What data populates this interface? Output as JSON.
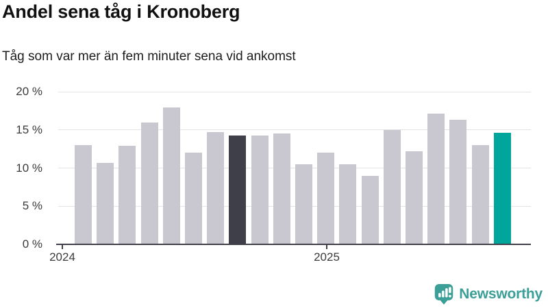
{
  "header": {
    "title": "Andel sena tåg i Kronoberg",
    "subtitle": "Tåg som var mer än fem minuter sena vid ankomst"
  },
  "chart_data": {
    "type": "bar",
    "title": "Andel sena tåg i Kronoberg",
    "subtitle": "Tåg som var mer än fem minuter sena vid ankomst",
    "unit": "%",
    "categories": [
      "2024-01",
      "2024-02",
      "2024-03",
      "2024-04",
      "2024-05",
      "2024-06",
      "2024-07",
      "2024-08",
      "2024-09",
      "2024-10",
      "2024-11",
      "2024-12",
      "2025-01",
      "2025-02",
      "2025-03",
      "2025-04",
      "2025-05",
      "2025-06",
      "2025-07",
      "2025-08"
    ],
    "values": [
      13.0,
      10.7,
      12.9,
      16.0,
      17.9,
      12.0,
      14.7,
      14.3,
      14.3,
      14.5,
      10.5,
      12.0,
      10.5,
      9.0,
      15.0,
      12.2,
      17.1,
      16.3,
      13.0,
      14.6
    ],
    "highlight_indices": {
      "dark": 7,
      "teal": 19
    },
    "ylim": [
      0,
      20
    ],
    "yticks": [
      {
        "value": 20,
        "label": "20 %"
      },
      {
        "value": 15,
        "label": "15 %"
      },
      {
        "value": 10,
        "label": "10 %"
      },
      {
        "value": 5,
        "label": "5 %"
      },
      {
        "value": 0,
        "label": "0 %"
      }
    ],
    "xticks": [
      {
        "label": "2024",
        "category": "2024-01"
      },
      {
        "label": "2025",
        "category": "2025-01"
      }
    ],
    "grid": true,
    "legend": "none"
  },
  "colors": {
    "bar_default": "#c9c8d0",
    "bar_highlight_dark": "#3f3f4a",
    "bar_highlight_teal": "#00a69b",
    "gridline": "#e3e3e3",
    "axis_line": "#3f3f4a",
    "tick_text": "#3a3a3a",
    "title_text": "#111111",
    "brand_teal": "#3b9e97"
  },
  "footer": {
    "brand": "Newsworthy"
  }
}
